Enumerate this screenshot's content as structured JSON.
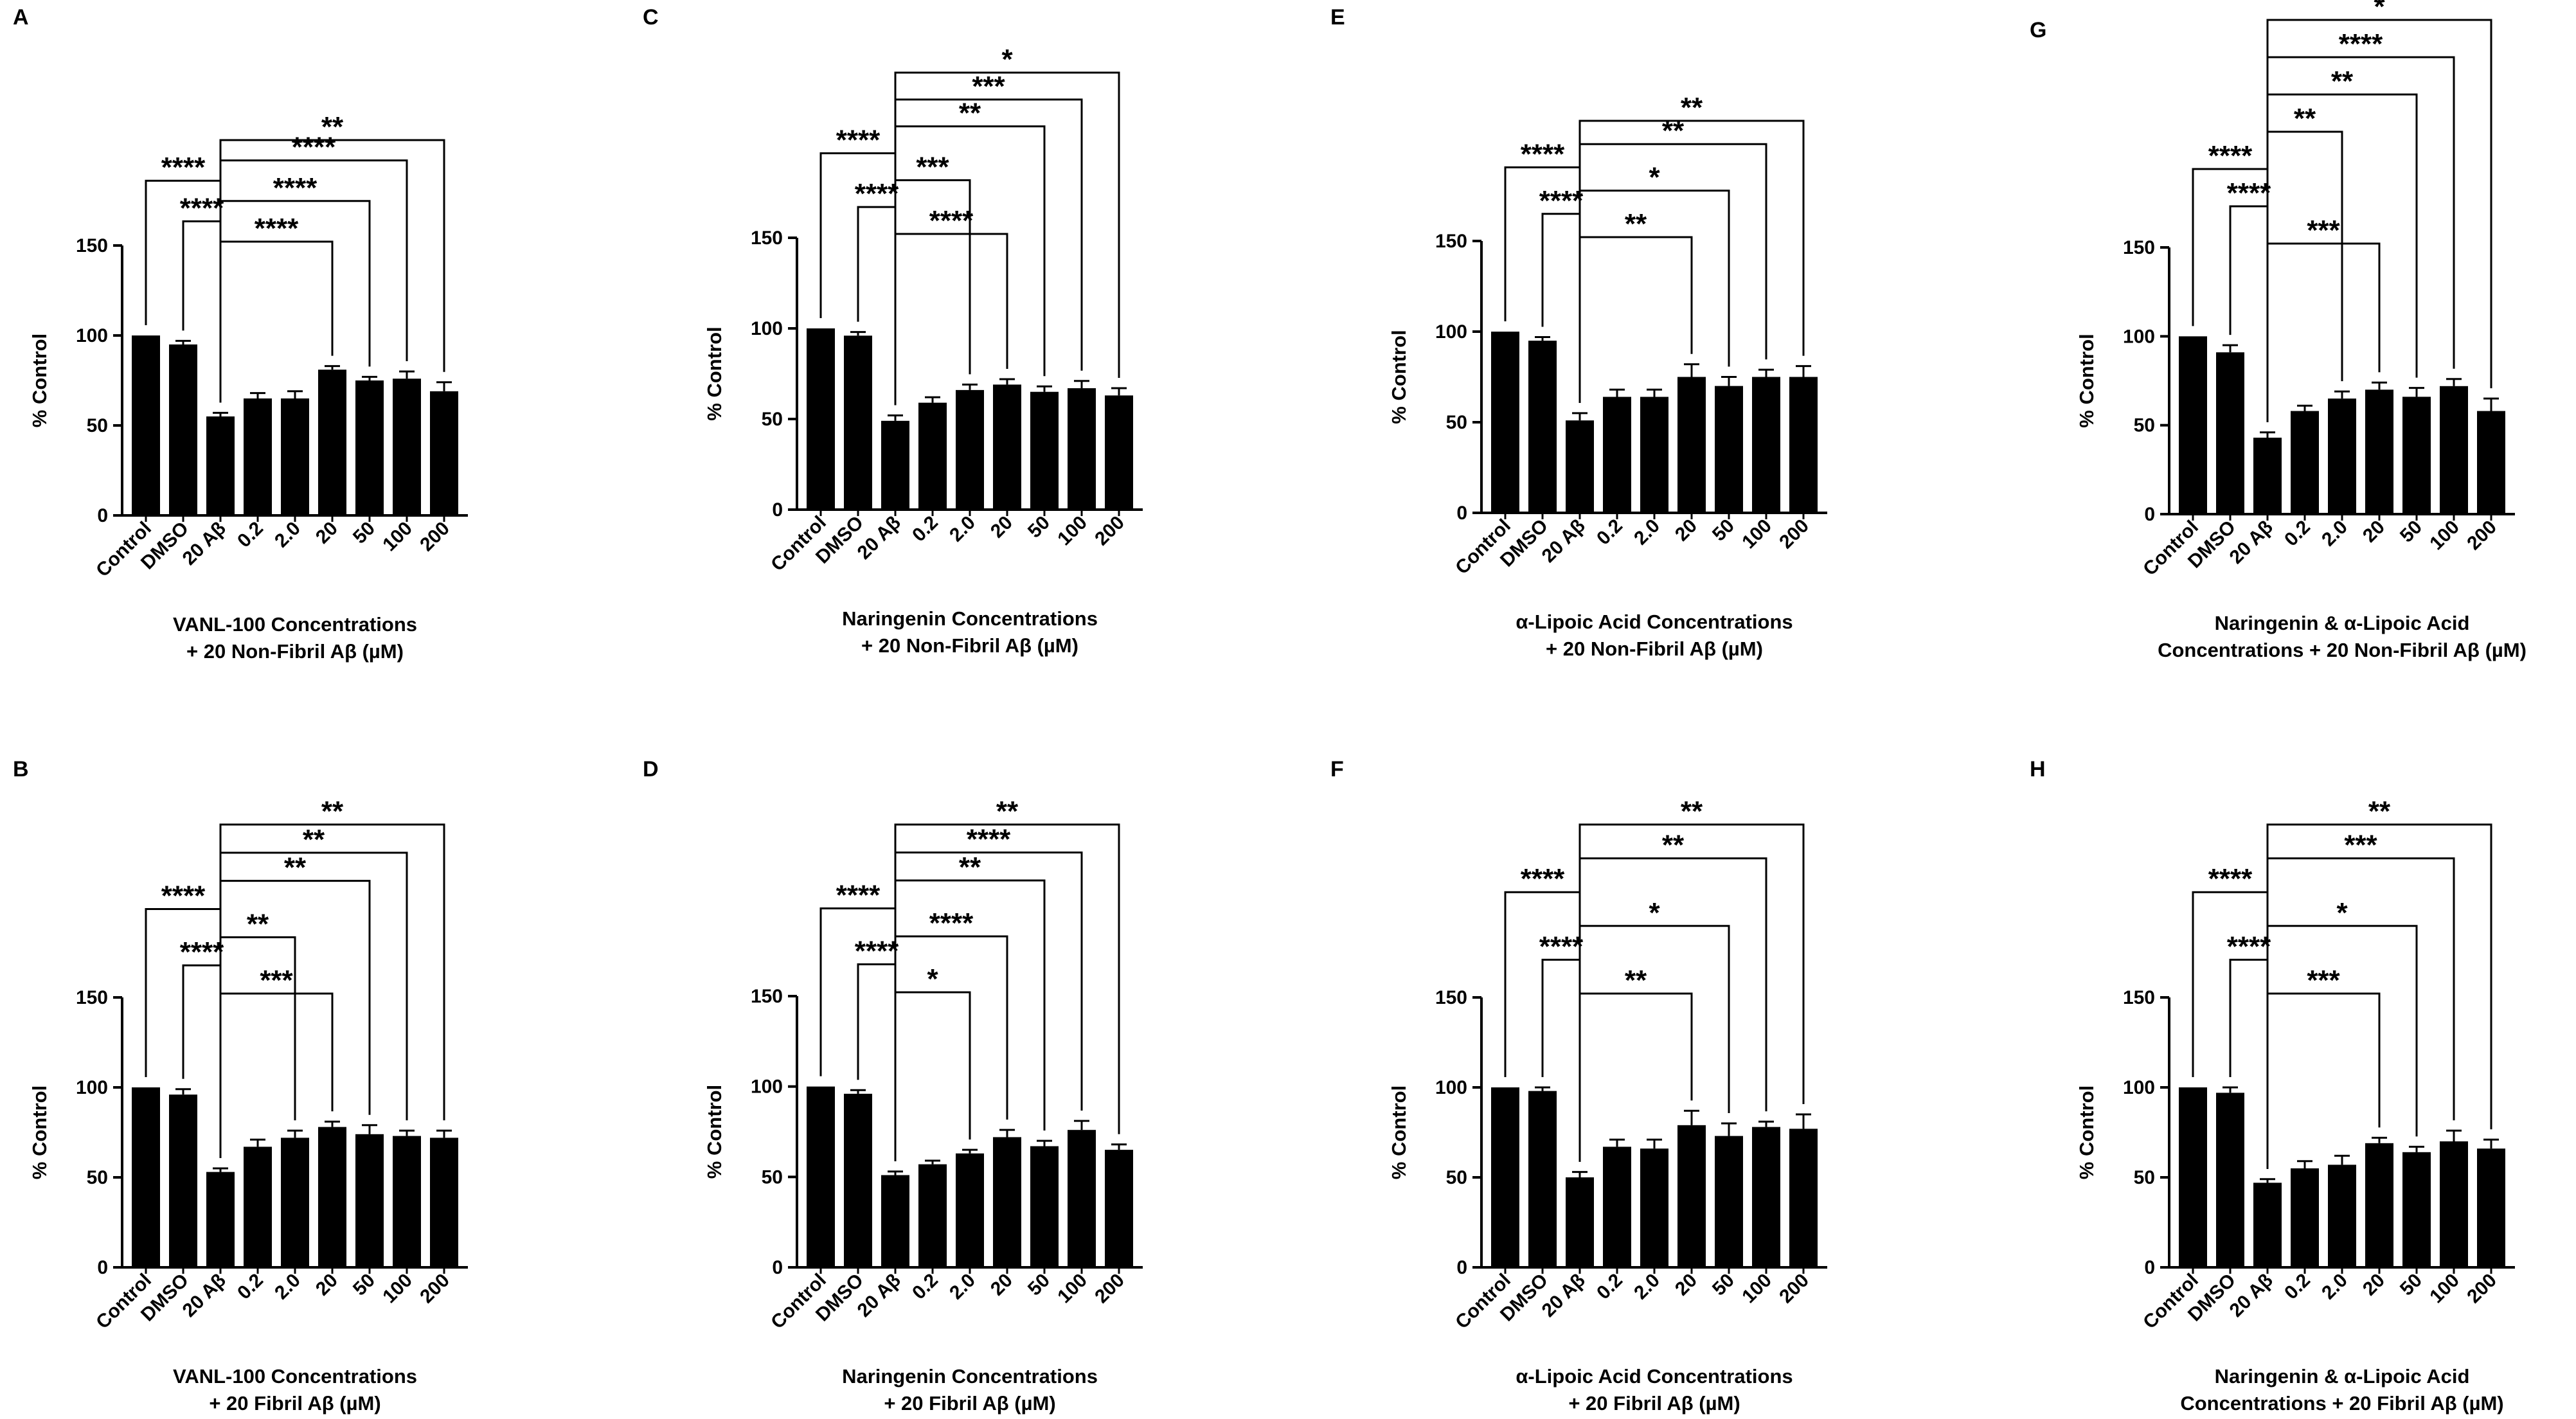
{
  "y_axis_label": "% Control",
  "y_ticks": [
    "0",
    "50",
    "100",
    "150"
  ],
  "categories": [
    "Control",
    "DMSO",
    "20 Aβ",
    "0.2",
    "2.0",
    "20",
    "50",
    "100",
    "200"
  ],
  "chart_data": [
    {
      "type": "bar",
      "panel": "A",
      "xlabel": [
        "VANL-100 Concentrations",
        "+ 20 Non-Fibril Aβ (µM)"
      ],
      "ylabel": "% Control",
      "ylim": [
        0,
        150
      ],
      "categories": [
        "Control",
        "DMSO",
        "20 Aβ",
        "0.2",
        "2.0",
        "20",
        "50",
        "100",
        "200"
      ],
      "values": [
        100,
        95,
        55,
        65,
        65,
        81,
        75,
        76,
        69
      ],
      "errors": [
        0,
        2,
        2,
        3,
        4,
        2,
        2,
        4,
        5
      ],
      "brackets": [
        {
          "from": 2,
          "to": 8,
          "label": "**"
        },
        {
          "from": 2,
          "to": 7,
          "label": "****"
        },
        {
          "from": 0,
          "to": 2,
          "label": "****"
        },
        {
          "from": 2,
          "to": 6,
          "label": "****"
        },
        {
          "from": 1,
          "to": 2,
          "label": "****"
        },
        {
          "from": 2,
          "to": 5,
          "label": "****"
        }
      ]
    },
    {
      "type": "bar",
      "panel": "B",
      "xlabel": [
        "VANL-100 Concentrations",
        "+ 20 Fibril Aβ (µM)"
      ],
      "ylabel": "% Control",
      "ylim": [
        0,
        150
      ],
      "categories": [
        "Control",
        "DMSO",
        "20 Aβ",
        "0.2",
        "2.0",
        "20",
        "50",
        "100",
        "200"
      ],
      "values": [
        100,
        96,
        53,
        67,
        72,
        78,
        74,
        73,
        72
      ],
      "errors": [
        0,
        3,
        2,
        4,
        4,
        3,
        5,
        3,
        4
      ],
      "brackets": [
        {
          "from": 2,
          "to": 8,
          "label": "**"
        },
        {
          "from": 2,
          "to": 7,
          "label": "**"
        },
        {
          "from": 2,
          "to": 6,
          "label": "**"
        },
        {
          "from": 0,
          "to": 2,
          "label": "****"
        },
        {
          "from": 2,
          "to": 4,
          "label": "**"
        },
        {
          "from": 1,
          "to": 2,
          "label": "****"
        },
        {
          "from": 2,
          "to": 5,
          "label": "***"
        }
      ]
    },
    {
      "type": "bar",
      "panel": "C",
      "xlabel": [
        "Naringenin Concentrations",
        "+ 20 Non-Fibril Aβ (µM)"
      ],
      "ylabel": "% Control",
      "ylim": [
        0,
        150
      ],
      "categories": [
        "Control",
        "DMSO",
        "20 Aβ",
        "0.2",
        "2.0",
        "20",
        "50",
        "100",
        "200"
      ],
      "values": [
        100,
        96,
        49,
        59,
        66,
        69,
        65,
        67,
        63
      ],
      "errors": [
        0,
        2,
        3,
        3,
        3,
        3,
        3,
        4,
        4
      ],
      "brackets": [
        {
          "from": 2,
          "to": 8,
          "label": "*"
        },
        {
          "from": 2,
          "to": 7,
          "label": "***"
        },
        {
          "from": 2,
          "to": 6,
          "label": "**"
        },
        {
          "from": 0,
          "to": 2,
          "label": "****"
        },
        {
          "from": 2,
          "to": 4,
          "label": "***"
        },
        {
          "from": 1,
          "to": 2,
          "label": "****"
        },
        {
          "from": 2,
          "to": 5,
          "label": "****"
        }
      ]
    },
    {
      "type": "bar",
      "panel": "D",
      "xlabel": [
        "Naringenin Concentrations",
        "+ 20 Fibril Aβ (µM)"
      ],
      "ylabel": "% Control",
      "ylim": [
        0,
        150
      ],
      "categories": [
        "Control",
        "DMSO",
        "20 Aβ",
        "0.2",
        "2.0",
        "20",
        "50",
        "100",
        "200"
      ],
      "values": [
        100,
        96,
        51,
        57,
        63,
        72,
        67,
        76,
        65
      ],
      "errors": [
        0,
        2,
        2,
        2,
        2,
        4,
        3,
        5,
        3
      ],
      "brackets": [
        {
          "from": 2,
          "to": 8,
          "label": "**"
        },
        {
          "from": 2,
          "to": 7,
          "label": "****"
        },
        {
          "from": 2,
          "to": 6,
          "label": "**"
        },
        {
          "from": 0,
          "to": 2,
          "label": "****"
        },
        {
          "from": 2,
          "to": 5,
          "label": "****"
        },
        {
          "from": 1,
          "to": 2,
          "label": "****"
        },
        {
          "from": 2,
          "to": 4,
          "label": "*"
        }
      ]
    },
    {
      "type": "bar",
      "panel": "E",
      "xlabel": [
        "α-Lipoic Acid Concentrations",
        "+ 20 Non-Fibril Aβ (µM)"
      ],
      "ylabel": "% Control",
      "ylim": [
        0,
        150
      ],
      "categories": [
        "Control",
        "DMSO",
        "20 Aβ",
        "0.2",
        "2.0",
        "20",
        "50",
        "100",
        "200"
      ],
      "values": [
        100,
        95,
        51,
        64,
        64,
        75,
        70,
        75,
        75
      ],
      "errors": [
        0,
        2,
        4,
        4,
        4,
        7,
        5,
        4,
        6
      ],
      "brackets": [
        {
          "from": 2,
          "to": 8,
          "label": "**"
        },
        {
          "from": 2,
          "to": 7,
          "label": "**"
        },
        {
          "from": 0,
          "to": 2,
          "label": "****"
        },
        {
          "from": 2,
          "to": 6,
          "label": "*"
        },
        {
          "from": 1,
          "to": 2,
          "label": "****"
        },
        {
          "from": 2,
          "to": 5,
          "label": "**"
        }
      ]
    },
    {
      "type": "bar",
      "panel": "F",
      "xlabel": [
        "α-Lipoic Acid Concentrations",
        "+ 20 Fibril Aβ (µM)"
      ],
      "ylabel": "% Control",
      "ylim": [
        0,
        150
      ],
      "categories": [
        "Control",
        "DMSO",
        "20 Aβ",
        "0.2",
        "2.0",
        "20",
        "50",
        "100",
        "200"
      ],
      "values": [
        100,
        98,
        50,
        67,
        66,
        79,
        73,
        78,
        77
      ],
      "errors": [
        0,
        2,
        3,
        4,
        5,
        8,
        7,
        3,
        8
      ],
      "brackets": [
        {
          "from": 2,
          "to": 8,
          "label": "**"
        },
        {
          "from": 2,
          "to": 7,
          "label": "**"
        },
        {
          "from": 0,
          "to": 2,
          "label": "****"
        },
        {
          "from": 2,
          "to": 6,
          "label": "*"
        },
        {
          "from": 1,
          "to": 2,
          "label": "****"
        },
        {
          "from": 2,
          "to": 5,
          "label": "**"
        }
      ]
    },
    {
      "type": "bar",
      "panel": "G",
      "xlabel": [
        "Naringenin & α-Lipoic Acid",
        "Concentrations + 20 Non-Fibril Aβ (µM)"
      ],
      "ylabel": "% Control",
      "ylim": [
        0,
        150
      ],
      "categories": [
        "Control",
        "DMSO",
        "20 Aβ",
        "0.2",
        "2.0",
        "20",
        "50",
        "100",
        "200"
      ],
      "values": [
        100,
        91,
        43,
        58,
        65,
        70,
        66,
        72,
        58
      ],
      "errors": [
        0,
        4,
        3,
        3,
        4,
        4,
        5,
        4,
        7
      ],
      "brackets": [
        {
          "from": 2,
          "to": 8,
          "label": "*"
        },
        {
          "from": 2,
          "to": 7,
          "label": "****"
        },
        {
          "from": 2,
          "to": 6,
          "label": "**"
        },
        {
          "from": 2,
          "to": 4,
          "label": "**"
        },
        {
          "from": 0,
          "to": 2,
          "label": "****"
        },
        {
          "from": 1,
          "to": 2,
          "label": "****"
        },
        {
          "from": 2,
          "to": 5,
          "label": "***"
        }
      ]
    },
    {
      "type": "bar",
      "panel": "H",
      "xlabel": [
        "Naringenin & α-Lipoic Acid",
        "Concentrations + 20 Fibril Aβ (µM)"
      ],
      "ylabel": "% Control",
      "ylim": [
        0,
        150
      ],
      "categories": [
        "Control",
        "DMSO",
        "20 Aβ",
        "0.2",
        "2.0",
        "20",
        "50",
        "100",
        "200"
      ],
      "values": [
        100,
        97,
        47,
        55,
        57,
        69,
        64,
        70,
        66
      ],
      "errors": [
        0,
        3,
        2,
        4,
        5,
        3,
        3,
        6,
        5
      ],
      "brackets": [
        {
          "from": 2,
          "to": 8,
          "label": "**"
        },
        {
          "from": 2,
          "to": 7,
          "label": "***"
        },
        {
          "from": 0,
          "to": 2,
          "label": "****"
        },
        {
          "from": 2,
          "to": 6,
          "label": "*"
        },
        {
          "from": 1,
          "to": 2,
          "label": "****"
        },
        {
          "from": 2,
          "to": 5,
          "label": "***"
        }
      ]
    }
  ]
}
